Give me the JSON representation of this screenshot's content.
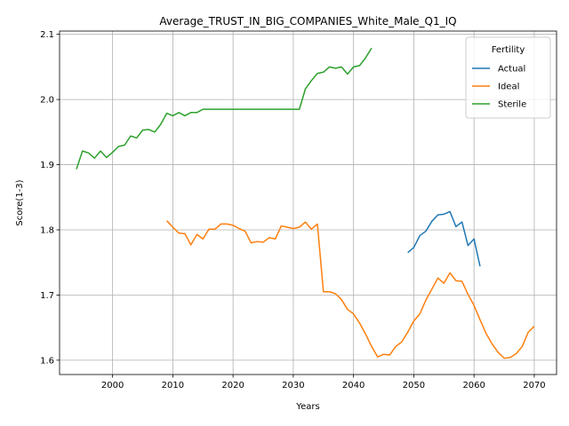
{
  "chart_data": {
    "type": "line",
    "title": "Average_TRUST_IN_BIG_COMPANIES_White_Male_Q1_IQ",
    "xlabel": "Years",
    "ylabel": "Score(1-3)",
    "xlim": [
      1991.2,
      2073.7
    ],
    "ylim": [
      1.578,
      2.105
    ],
    "x_ticks": [
      2000,
      2010,
      2020,
      2030,
      2040,
      2050,
      2060,
      2070
    ],
    "y_ticks": [
      1.6,
      1.7,
      1.8,
      1.9,
      2.0,
      2.1
    ],
    "x_tick_labels": [
      "2000",
      "2010",
      "2020",
      "2030",
      "2040",
      "2050",
      "2060",
      "2070"
    ],
    "y_tick_labels": [
      "1.6",
      "1.7",
      "1.8",
      "1.9",
      "2.0",
      "2.1"
    ],
    "grid": true,
    "legend": {
      "title": "Fertility",
      "placement": "top-right"
    },
    "series": [
      {
        "name": "Actual",
        "color": "#1f77b4",
        "x": [
          2049,
          2050,
          2051,
          2052,
          2053,
          2054,
          2055,
          2056,
          2057,
          2058,
          2059,
          2060,
          2061
        ],
        "y": [
          1.765,
          1.773,
          1.791,
          1.798,
          1.813,
          1.823,
          1.824,
          1.828,
          1.805,
          1.812,
          1.776,
          1.786,
          1.744
        ]
      },
      {
        "name": "Ideal",
        "color": "#ff7f0e",
        "x": [
          2009,
          2010,
          2011,
          2012,
          2013,
          2014,
          2015,
          2016,
          2017,
          2018,
          2019,
          2020,
          2021,
          2022,
          2023,
          2024,
          2025,
          2026,
          2027,
          2028,
          2029,
          2030,
          2031,
          2032,
          2033,
          2034,
          2035,
          2036,
          2037,
          2038,
          2039,
          2040,
          2041,
          2042,
          2043,
          2044,
          2045,
          2046,
          2047,
          2048,
          2049,
          2050,
          2051,
          2052,
          2053,
          2054,
          2055,
          2056,
          2057,
          2058,
          2059,
          2060,
          2061,
          2062,
          2063,
          2064,
          2065,
          2066,
          2067,
          2068,
          2069,
          2070
        ],
        "y": [
          1.814,
          1.804,
          1.795,
          1.794,
          1.777,
          1.793,
          1.786,
          1.801,
          1.801,
          1.809,
          1.809,
          1.807,
          1.802,
          1.798,
          1.78,
          1.782,
          1.781,
          1.788,
          1.786,
          1.806,
          1.804,
          1.802,
          1.804,
          1.812,
          1.801,
          1.809,
          1.705,
          1.705,
          1.702,
          1.693,
          1.678,
          1.671,
          1.657,
          1.64,
          1.621,
          1.605,
          1.609,
          1.608,
          1.621,
          1.628,
          1.643,
          1.66,
          1.671,
          1.692,
          1.709,
          1.726,
          1.718,
          1.734,
          1.722,
          1.721,
          1.701,
          1.684,
          1.662,
          1.641,
          1.625,
          1.612,
          1.603,
          1.604,
          1.61,
          1.621,
          1.643,
          1.652
        ]
      },
      {
        "name": "Sterile",
        "color": "#2ca02c",
        "x": [
          1994,
          1995,
          1996,
          1997,
          1998,
          1999,
          2000,
          2001,
          2002,
          2003,
          2004,
          2005,
          2006,
          2007,
          2008,
          2009,
          2010,
          2011,
          2012,
          2013,
          2014,
          2015,
          2016,
          2017,
          2018,
          2019,
          2020,
          2021,
          2022,
          2023,
          2024,
          2025,
          2026,
          2027,
          2028,
          2029,
          2030,
          2031,
          2032,
          2033,
          2034,
          2035,
          2036,
          2037,
          2038,
          2039,
          2040,
          2041,
          2042,
          2043
        ],
        "y": [
          1.893,
          1.921,
          1.918,
          1.91,
          1.921,
          1.911,
          1.919,
          1.928,
          1.93,
          1.944,
          1.941,
          1.953,
          1.954,
          1.95,
          1.962,
          1.979,
          1.975,
          1.98,
          1.975,
          1.98,
          1.98,
          1.985,
          1.985,
          1.985,
          1.985,
          1.985,
          1.985,
          1.985,
          1.985,
          1.985,
          1.985,
          1.985,
          1.985,
          1.985,
          1.985,
          1.985,
          1.985,
          1.985,
          2.016,
          2.029,
          2.04,
          2.042,
          2.05,
          2.048,
          2.05,
          2.039,
          2.05,
          2.052,
          2.064,
          2.079
        ]
      }
    ]
  }
}
